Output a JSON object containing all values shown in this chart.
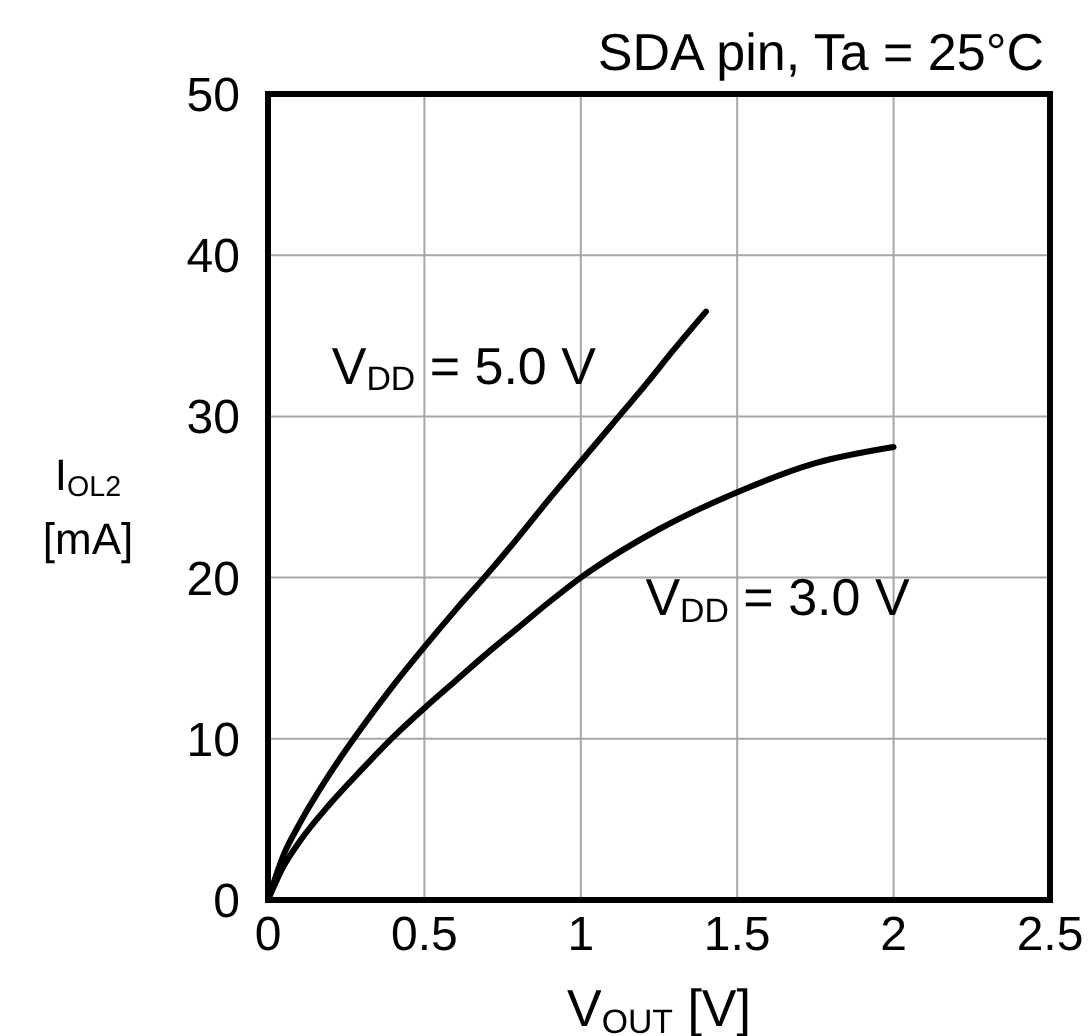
{
  "chart_data": {
    "type": "line",
    "title": "SDA pin, Ta = 25°C",
    "xlabel": "V$_{OUT}$ [V]",
    "ylabel": "I$_{OL2}$\n[mA]",
    "xlim": [
      0,
      2.5
    ],
    "xticks": [
      0,
      0.5,
      1,
      1.5,
      2,
      2.5
    ],
    "ylim": [
      0,
      50
    ],
    "yticks": [
      0,
      10,
      20,
      30,
      40,
      50
    ],
    "grid": true,
    "series": [
      {
        "name": "V$_{DD}$ = 5.0 V",
        "color": "#000000",
        "x": [
          0,
          0.05,
          0.1,
          0.2,
          0.3,
          0.4,
          0.5,
          0.6,
          0.7,
          0.8,
          0.9,
          1.0,
          1.1,
          1.2,
          1.3,
          1.4
        ],
        "values": [
          0,
          2.8,
          4.7,
          7.9,
          10.7,
          13.3,
          15.7,
          18,
          20.2,
          22.5,
          24.9,
          27.2,
          29.5,
          31.8,
          34.2,
          36.5
        ]
      },
      {
        "name": "V$_{DD}$ = 3.0 V",
        "color": "#000000",
        "x": [
          0,
          0.05,
          0.1,
          0.2,
          0.3,
          0.4,
          0.5,
          0.6,
          0.7,
          0.8,
          0.9,
          1.0,
          1.1,
          1.25,
          1.5,
          1.75,
          2.0
        ],
        "values": [
          0,
          2.1,
          3.6,
          6,
          8.1,
          10.1,
          11.9,
          13.6,
          15.3,
          16.9,
          18.5,
          20,
          21.3,
          23,
          25.3,
          27.1,
          28.1
        ]
      }
    ]
  }
}
